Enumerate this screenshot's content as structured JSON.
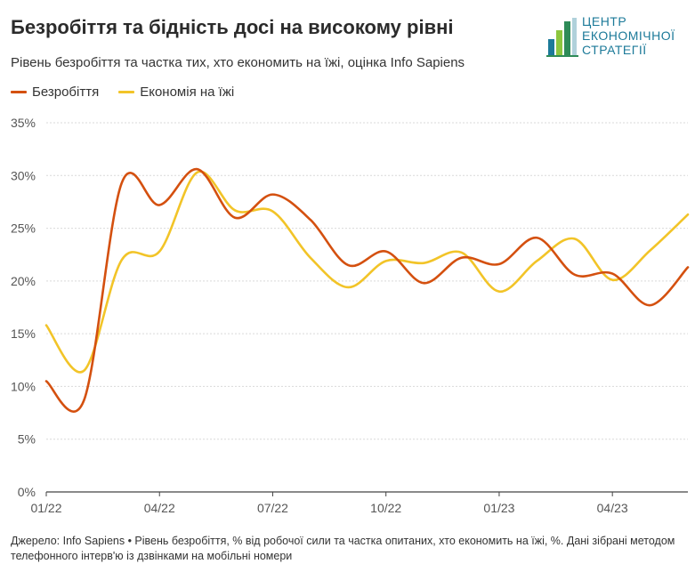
{
  "header": {
    "title": "Безробіття та бідність досі на високому рівні",
    "subtitle": "Рівень безробіття та частка тих, хто економить на їжі, оцінка Info Sapiens"
  },
  "logo": {
    "lines": [
      "ЦЕНТР",
      "ЕКОНОМІЧНОЇ",
      "СТРАТЕГІЇ"
    ],
    "colors": [
      "#1c7a99",
      "#8cc63f",
      "#2e8b57"
    ]
  },
  "footer": {
    "text": "Джерело: Info Sapiens • Рівень безробіття, % від робочої сили та частка опитаних, хто економить на їжі, %. Дані зібрані методом телефонного інтерв'ю із дзвінками на мобільні номери"
  },
  "chart_data": {
    "type": "line",
    "x": [
      "01/22",
      "02/22",
      "03/22",
      "04/22",
      "05/22",
      "06/22",
      "07/22",
      "08/22",
      "09/22",
      "10/22",
      "11/22",
      "12/22",
      "01/23",
      "02/23",
      "03/23",
      "04/23",
      "05/23",
      "06/23"
    ],
    "series": [
      {
        "name": "Безробіття",
        "color": "#d4500f",
        "values": [
          10.5,
          8.7,
          29.3,
          27.2,
          30.6,
          26.0,
          28.2,
          25.8,
          21.5,
          22.8,
          19.8,
          22.2,
          21.6,
          24.1,
          20.6,
          20.7,
          17.7,
          21.3
        ]
      },
      {
        "name": "Економія на їжі",
        "color": "#f2c428",
        "values": [
          15.8,
          11.5,
          22.0,
          22.8,
          30.3,
          26.7,
          26.6,
          22.2,
          19.4,
          21.9,
          21.7,
          22.7,
          19.0,
          21.9,
          24.0,
          20.1,
          22.9,
          26.3
        ]
      }
    ],
    "x_tick_labels": [
      "01/22",
      "04/22",
      "07/22",
      "10/22",
      "01/23",
      "04/23"
    ],
    "y_ticks": [
      "0%",
      "5%",
      "10%",
      "15%",
      "20%",
      "25%",
      "30%",
      "35%"
    ],
    "ylim": [
      0,
      35
    ],
    "grid": true,
    "legend_position": "top-left"
  }
}
